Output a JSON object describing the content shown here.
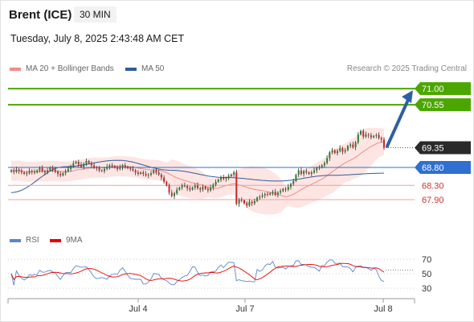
{
  "header": {
    "title": "Brent (ICE)",
    "interval": "30 MIN",
    "datetime": "Tuesday, July 8, 2025 2:43:48 AM CET"
  },
  "legend": [
    {
      "name": "MA 20 + Bollinger Bands",
      "color": "#f08c86"
    },
    {
      "name": "MA 50",
      "color": "#2f5d98"
    }
  ],
  "credit": "Research © 2025 Trading Central",
  "rsi_legend": [
    {
      "name": "RSI",
      "color": "#5b86c9"
    },
    {
      "name": "9MA",
      "color": "#e60000"
    }
  ],
  "colors": {
    "target_green": "#4ca600",
    "support_red": "#f0a0a0",
    "pivot_blue": "#2f6fd0",
    "price_dark": "#2a2a2a",
    "arrow": "#2f5fa3",
    "candle_up": "#2e7d32",
    "candle_down": "#c62828",
    "band_fill": "#fde0de"
  },
  "chart_data": [
    {
      "type": "candlestick",
      "x_ticks": [
        "Jul 4",
        "Jul 7",
        "Jul 8"
      ],
      "ylim": [
        67.6,
        71.2
      ],
      "levels": [
        {
          "value": 71.0,
          "label": "71.00",
          "kind": "resistance"
        },
        {
          "value": 70.55,
          "label": "70.55",
          "kind": "resistance"
        },
        {
          "value": 69.35,
          "label": "69.35",
          "kind": "last"
        },
        {
          "value": 68.8,
          "label": "68.80",
          "kind": "pivot"
        },
        {
          "value": 68.3,
          "label": "68.30",
          "kind": "support"
        },
        {
          "value": 67.9,
          "label": "67.90",
          "kind": "support"
        }
      ],
      "close": [
        68.72,
        68.68,
        68.74,
        68.7,
        68.66,
        68.62,
        68.64,
        68.7,
        68.68,
        68.66,
        68.72,
        68.78,
        68.7,
        68.66,
        68.72,
        68.8,
        68.74,
        68.68,
        68.62,
        68.58,
        68.64,
        68.7,
        68.76,
        68.84,
        68.92,
        68.96,
        68.88,
        68.82,
        68.9,
        68.98,
        68.92,
        68.86,
        68.8,
        68.78,
        68.72,
        68.7,
        68.76,
        68.82,
        68.86,
        68.84,
        68.8,
        68.76,
        68.8,
        68.86,
        68.82,
        68.78,
        68.76,
        68.72,
        68.66,
        68.62,
        68.66,
        68.62,
        68.58,
        68.6,
        68.64,
        68.72,
        68.66,
        68.6,
        68.52,
        68.4,
        68.3,
        68.1,
        68.0,
        68.08,
        68.18,
        68.24,
        68.3,
        68.28,
        68.22,
        68.18,
        68.24,
        68.3,
        68.22,
        68.18,
        68.26,
        68.2,
        68.16,
        68.24,
        68.32,
        68.4,
        68.46,
        68.52,
        68.48,
        68.5,
        68.56,
        68.6,
        68.66,
        67.78,
        67.9,
        67.88,
        67.8,
        67.74,
        67.84,
        67.8,
        67.86,
        67.96,
        67.98,
        68.02,
        68.06,
        68.04,
        68.08,
        68.12,
        68.04,
        68.1,
        68.14,
        68.2,
        68.18,
        68.26,
        68.34,
        68.42,
        68.6,
        68.72,
        68.62,
        68.7,
        68.66,
        68.62,
        68.66,
        68.72,
        68.78,
        68.8,
        68.86,
        68.92,
        69.06,
        69.22,
        69.28,
        69.2,
        69.26,
        69.34,
        69.24,
        69.28,
        69.4,
        69.44,
        69.36,
        69.5,
        69.72,
        69.82,
        69.66,
        69.72,
        69.7,
        69.64,
        69.68,
        69.7,
        69.62,
        69.58,
        69.35
      ],
      "ma50": [
        68.1,
        68.82,
        69.0,
        68.72,
        68.52,
        68.42,
        68.58,
        68.64
      ],
      "rsi_range": [
        30,
        70
      ],
      "rsi_ticks": [
        70,
        50,
        30
      ]
    }
  ]
}
